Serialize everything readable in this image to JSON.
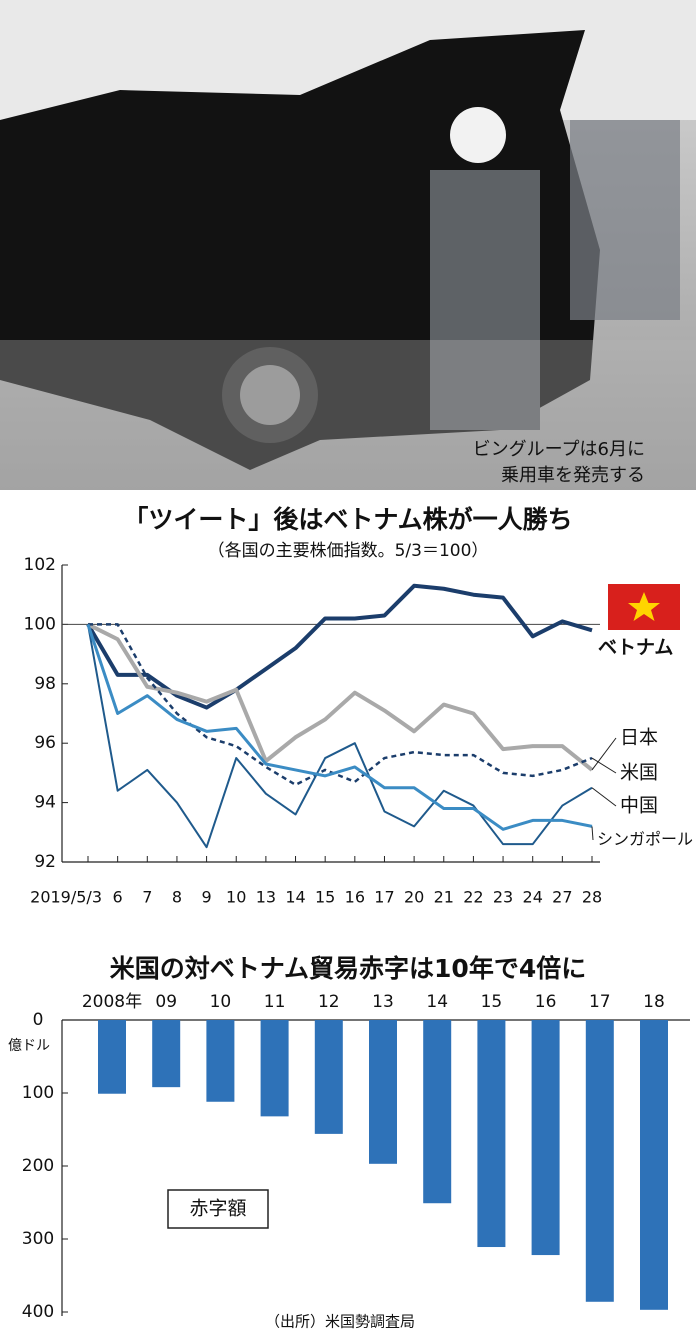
{
  "photo_caption": [
    "ビングループは6月に",
    "乗用車を発売する"
  ],
  "chart_data": [
    {
      "type": "line",
      "title": "「ツイート」後はベトナム株が一人勝ち",
      "subtitle": "（各国の主要株価指数。5/3＝100）",
      "categories": [
        "2019/5/3",
        "6",
        "7",
        "8",
        "9",
        "10",
        "13",
        "14",
        "15",
        "16",
        "17",
        "20",
        "21",
        "22",
        "23",
        "24",
        "27",
        "28"
      ],
      "ylim": [
        92,
        102
      ],
      "yticks": [
        92,
        94,
        96,
        98,
        100,
        102
      ],
      "reference_line": 100,
      "series": [
        {
          "name": "ベトナム",
          "color": "#1b3d6b",
          "style": "solid",
          "width": 4,
          "values": [
            100,
            98.3,
            98.3,
            97.6,
            97.2,
            97.8,
            98.5,
            99.2,
            100.2,
            100.2,
            100.3,
            101.3,
            101.2,
            101.0,
            100.9,
            99.6,
            100.1,
            99.8
          ]
        },
        {
          "name": "日本",
          "color": "#a9a9a9",
          "style": "solid",
          "width": 4,
          "values": [
            100,
            99.5,
            97.9,
            97.7,
            97.4,
            97.8,
            95.4,
            96.2,
            96.8,
            97.7,
            97.1,
            96.4,
            97.3,
            97.0,
            95.8,
            95.9,
            95.9,
            95.1
          ]
        },
        {
          "name": "米国",
          "color": "#1b3d6b",
          "style": "dashed",
          "width": 2.5,
          "values": [
            100,
            100,
            98.2,
            97.0,
            96.2,
            95.9,
            95.2,
            94.6,
            95.1,
            94.7,
            95.5,
            95.7,
            95.6,
            95.6,
            95.0,
            94.9,
            95.1,
            95.5
          ]
        },
        {
          "name": "中国",
          "color": "#1f5a8c",
          "style": "solid",
          "width": 2,
          "values": [
            100,
            94.4,
            95.1,
            94.0,
            92.5,
            95.5,
            94.3,
            93.6,
            95.5,
            96.0,
            93.7,
            93.2,
            94.4,
            93.9,
            92.6,
            92.6,
            93.9,
            94.5
          ]
        },
        {
          "name": "シンガポール",
          "color": "#3b8cc4",
          "style": "solid",
          "width": 3,
          "values": [
            100,
            97.0,
            97.6,
            96.8,
            96.4,
            96.5,
            95.3,
            95.1,
            94.9,
            95.2,
            94.5,
            94.5,
            93.8,
            93.8,
            93.1,
            93.4,
            93.4,
            93.2
          ]
        }
      ]
    },
    {
      "type": "bar",
      "title": "米国の対ベトナム貿易赤字は10年で4倍に",
      "y_unit": "億ドル",
      "annotation": "赤字額",
      "source": "（出所）米国勢調査局",
      "categories": [
        "2008年",
        "09",
        "10",
        "11",
        "12",
        "13",
        "14",
        "15",
        "16",
        "17",
        "18"
      ],
      "values": [
        101,
        92,
        112,
        132,
        156,
        197,
        251,
        311,
        322,
        386,
        397
      ],
      "color": "#2e72b8",
      "ylim": [
        0,
        400
      ],
      "yticks": [
        0,
        100,
        200,
        300,
        400
      ],
      "y_inverted": true
    }
  ]
}
